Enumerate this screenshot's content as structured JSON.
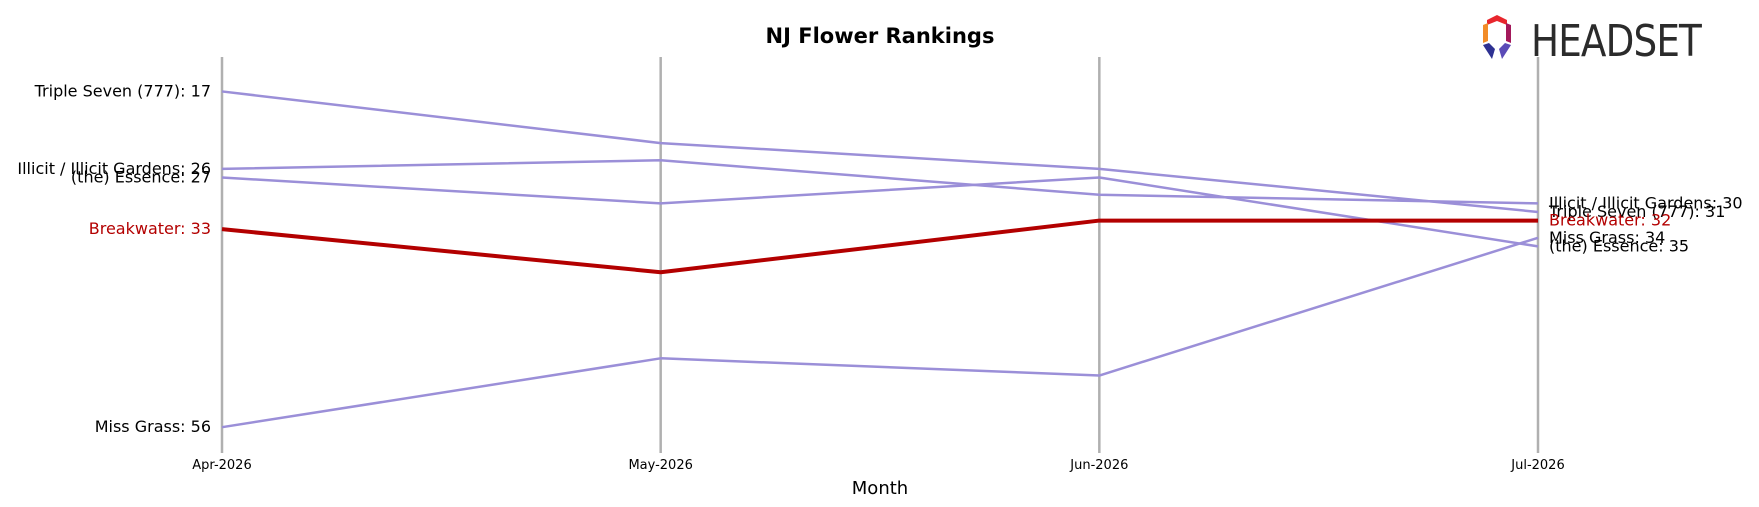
{
  "chart_data": {
    "type": "line",
    "title": "NJ Flower Rankings",
    "xlabel": "Month",
    "ylabel": "",
    "categories": [
      "Apr-2026",
      "May-2026",
      "Jun-2026",
      "Jul-2026"
    ],
    "y_inverted": true,
    "ylim": [
      13,
      59
    ],
    "grid": "vertical",
    "series": [
      {
        "name": "Triple Seven (777)",
        "values": [
          17,
          23,
          26,
          31
        ],
        "color": "#9b8fd8",
        "highlight": false
      },
      {
        "name": "Illicit / Illicit Gardens",
        "values": [
          26,
          25,
          29,
          30
        ],
        "color": "#9b8fd8",
        "highlight": false
      },
      {
        "name": "(the) Essence",
        "values": [
          27,
          30,
          27,
          35
        ],
        "color": "#9b8fd8",
        "highlight": false
      },
      {
        "name": "Breakwater",
        "values": [
          33,
          38,
          32,
          32
        ],
        "color": "#b30000",
        "highlight": true
      },
      {
        "name": "Miss Grass",
        "values": [
          56,
          48,
          50,
          34
        ],
        "color": "#9b8fd8",
        "highlight": false
      }
    ],
    "start_labels": [
      {
        "series": 0,
        "text": "Triple Seven (777): 17"
      },
      {
        "series": 1,
        "text": "Illicit / Illicit Gardens: 26"
      },
      {
        "series": 2,
        "text": "(the) Essence: 27"
      },
      {
        "series": 3,
        "text": "Breakwater: 33"
      },
      {
        "series": 4,
        "text": "Miss Grass: 56"
      }
    ],
    "end_labels": [
      {
        "series": 1,
        "text": "Illicit / Illicit Gardens: 30"
      },
      {
        "series": 0,
        "text": "Triple Seven (777): 31"
      },
      {
        "series": 3,
        "text": "Breakwater: 32"
      },
      {
        "series": 4,
        "text": "Miss Grass: 34"
      },
      {
        "series": 2,
        "text": "(the) Essence: 35"
      }
    ]
  },
  "logo": {
    "text": "HEADSET",
    "colors": [
      "#e8262d",
      "#f28c28",
      "#a3195b",
      "#2e3192",
      "#5b4bb7"
    ]
  }
}
